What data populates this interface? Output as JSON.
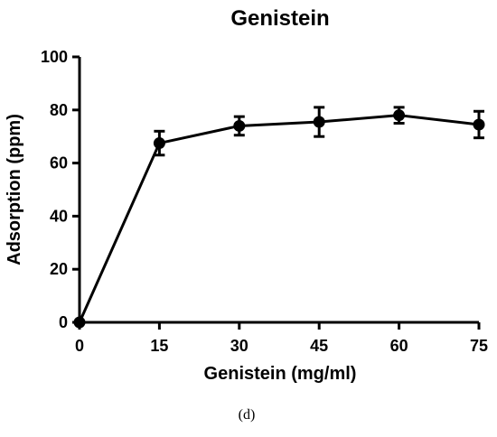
{
  "chart_data": {
    "type": "line",
    "title": "Genistein",
    "xlabel": "Genistein (mg/ml)",
    "ylabel": "Adsorption (ppm)",
    "x": [
      0,
      15,
      30,
      45,
      60,
      75
    ],
    "series": [
      {
        "values": [
          0,
          67.5,
          74,
          75.5,
          78,
          74.5
        ],
        "error": [
          0,
          4.5,
          3.5,
          5.5,
          3,
          5
        ],
        "color": "#000000"
      }
    ],
    "xlim": [
      0,
      75
    ],
    "ylim": [
      0,
      100
    ],
    "xticks": [
      0,
      15,
      30,
      45,
      60,
      75
    ],
    "yticks": [
      0,
      20,
      40,
      60,
      80,
      100
    ],
    "grid": false,
    "legend": "none"
  },
  "caption": "(d)"
}
